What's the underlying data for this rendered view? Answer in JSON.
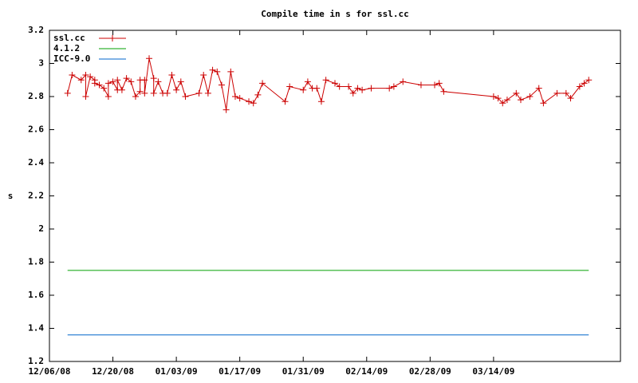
{
  "chart_data": {
    "type": "line",
    "title": "Compile time in s for ssl.cc",
    "y_label": "s",
    "xlim": [
      "12/06/08",
      "04/11/09"
    ],
    "xticks": [
      "12/06/08",
      "12/20/08",
      "01/03/09",
      "01/17/09",
      "01/31/09",
      "02/14/09",
      "02/28/09",
      "03/14/09"
    ],
    "ylim": [
      1.2,
      3.2
    ],
    "yticks": [
      1.2,
      1.4,
      1.6,
      1.8,
      2,
      2.2,
      2.4,
      2.6,
      2.8,
      3,
      3.2
    ],
    "grid": false,
    "legend": "top-left",
    "series": [
      {
        "name": "ssl.cc",
        "color": "#cc0000",
        "marker": "plus",
        "x": [
          "12/10/08",
          "12/11/08",
          "12/13/08",
          "12/14/08",
          "12/14/08",
          "12/15/08",
          "12/16/08",
          "12/16/08",
          "12/17/08",
          "12/18/08",
          "12/19/08",
          "12/19/08",
          "12/20/08",
          "12/21/08",
          "12/21/08",
          "12/22/08",
          "12/23/08",
          "12/24/08",
          "12/25/08",
          "12/26/08",
          "12/26/08",
          "12/27/08",
          "12/27/08",
          "12/28/08",
          "12/29/08",
          "12/29/08",
          "12/30/08",
          "12/31/08",
          "01/01/09",
          "01/02/09",
          "01/03/09",
          "01/04/09",
          "01/05/09",
          "01/08/09",
          "01/09/09",
          "01/10/09",
          "01/11/09",
          "01/12/09",
          "01/13/09",
          "01/14/09",
          "01/15/09",
          "01/16/09",
          "01/17/09",
          "01/19/09",
          "01/20/09",
          "01/21/09",
          "01/22/09",
          "01/27/09",
          "01/28/09",
          "01/31/09",
          "02/01/09",
          "02/02/09",
          "02/03/09",
          "02/04/09",
          "02/05/09",
          "02/07/09",
          "02/08/09",
          "02/10/09",
          "02/11/09",
          "02/12/09",
          "02/13/09",
          "02/15/09",
          "02/19/09",
          "02/20/09",
          "02/22/09",
          "02/26/09",
          "03/01/09",
          "03/02/09",
          "03/03/09",
          "03/14/09",
          "03/15/09",
          "03/16/09",
          "03/17/09",
          "03/19/09",
          "03/20/09",
          "03/22/09",
          "03/24/09",
          "03/25/09",
          "03/28/09",
          "03/30/09",
          "03/31/09",
          "04/02/09",
          "04/03/09",
          "04/04/09"
        ],
        "values": [
          2.82,
          2.93,
          2.9,
          2.93,
          2.8,
          2.92,
          2.9,
          2.88,
          2.87,
          2.85,
          2.8,
          2.88,
          2.89,
          2.84,
          2.9,
          2.84,
          2.91,
          2.89,
          2.8,
          2.83,
          2.9,
          2.9,
          2.82,
          3.03,
          2.91,
          2.82,
          2.89,
          2.82,
          2.82,
          2.93,
          2.84,
          2.89,
          2.8,
          2.82,
          2.93,
          2.82,
          2.96,
          2.95,
          2.87,
          2.72,
          2.95,
          2.8,
          2.79,
          2.77,
          2.76,
          2.81,
          2.88,
          2.77,
          2.86,
          2.84,
          2.89,
          2.85,
          2.85,
          2.77,
          2.9,
          2.88,
          2.86,
          2.86,
          2.82,
          2.85,
          2.84,
          2.85,
          2.85,
          2.86,
          2.89,
          2.87,
          2.87,
          2.88,
          2.83,
          2.8,
          2.79,
          2.76,
          2.78,
          2.82,
          2.78,
          2.8,
          2.85,
          2.76,
          2.82,
          2.82,
          2.79,
          2.86,
          2.88,
          2.9
        ]
      },
      {
        "name": "4.1.2",
        "color": "#00a000",
        "x": [
          "12/10/08",
          "04/04/09"
        ],
        "values": [
          1.75,
          1.75
        ]
      },
      {
        "name": "ICC-9.0",
        "color": "#0066cc",
        "x": [
          "12/10/08",
          "04/04/09"
        ],
        "values": [
          1.36,
          1.36
        ]
      }
    ]
  }
}
